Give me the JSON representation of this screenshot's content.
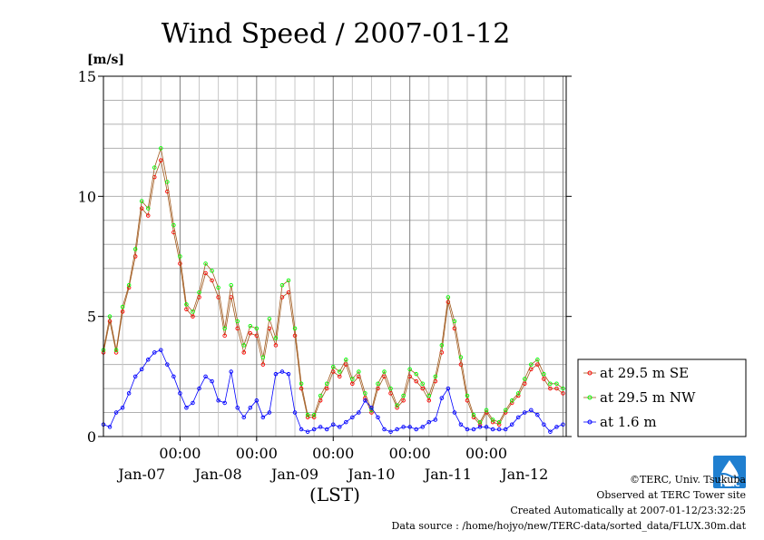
{
  "chart_data": {
    "type": "line",
    "title": "Wind Speed / 2007-01-12",
    "ylabel": "[m/s]",
    "xlabel": "(LST)",
    "ylim": [
      0,
      15
    ],
    "yticks": [
      "0",
      "5",
      "10",
      "15"
    ],
    "xlim_hours": [
      0,
      145
    ],
    "time_ticks": [
      {
        "label": "00:00",
        "hour": 24
      },
      {
        "label": "00:00",
        "hour": 48
      },
      {
        "label": "00:00",
        "hour": 72
      },
      {
        "label": "00:00",
        "hour": 96
      },
      {
        "label": "00:00",
        "hour": 120
      }
    ],
    "date_labels": [
      {
        "label": "Jan-07",
        "hour": 12
      },
      {
        "label": "Jan-08",
        "hour": 36
      },
      {
        "label": "Jan-09",
        "hour": 60
      },
      {
        "label": "Jan-10",
        "hour": 84
      },
      {
        "label": "Jan-11",
        "hour": 108
      },
      {
        "label": "Jan-12",
        "hour": 132
      }
    ],
    "grid": true,
    "legend_position": "right",
    "series": [
      {
        "name": "at 29.5 m SE",
        "color": "#ff0000",
        "line_color": "#a05a1e",
        "x": [
          0,
          2,
          4,
          6,
          8,
          10,
          12,
          14,
          16,
          18,
          20,
          22,
          24,
          26,
          28,
          30,
          32,
          34,
          36,
          38,
          40,
          42,
          44,
          46,
          48,
          50,
          52,
          54,
          56,
          58,
          60,
          62,
          64,
          66,
          68,
          70,
          72,
          74,
          76,
          78,
          80,
          82,
          84,
          86,
          88,
          90,
          92,
          94,
          96,
          98,
          100,
          102,
          104,
          106,
          108,
          110,
          112,
          114,
          116,
          118,
          120,
          122,
          124,
          126,
          128,
          130,
          132,
          134,
          136,
          138,
          140,
          142,
          144
        ],
        "values": [
          3.5,
          4.8,
          3.5,
          5.2,
          6.2,
          7.5,
          9.5,
          9.2,
          10.8,
          11.5,
          10.2,
          8.5,
          7.2,
          5.3,
          5.0,
          5.8,
          6.8,
          6.5,
          5.8,
          4.2,
          5.8,
          4.5,
          3.5,
          4.3,
          4.2,
          3.0,
          4.5,
          3.8,
          5.8,
          6.0,
          4.2,
          2.0,
          0.8,
          0.8,
          1.5,
          2.0,
          2.7,
          2.5,
          3.0,
          2.2,
          2.5,
          1.6,
          1.0,
          2.0,
          2.5,
          1.8,
          1.2,
          1.5,
          2.5,
          2.3,
          2.0,
          1.5,
          2.3,
          3.5,
          5.6,
          4.5,
          3.0,
          1.5,
          0.8,
          0.5,
          1.0,
          0.6,
          0.5,
          1.0,
          1.4,
          1.7,
          2.2,
          2.8,
          3.0,
          2.4,
          2.0,
          2.0,
          1.8
        ]
      },
      {
        "name": "at 29.5 m NW",
        "color": "#00ff00",
        "line_color": "#a05a1e",
        "x": [
          0,
          2,
          4,
          6,
          8,
          10,
          12,
          14,
          16,
          18,
          20,
          22,
          24,
          26,
          28,
          30,
          32,
          34,
          36,
          38,
          40,
          42,
          44,
          46,
          48,
          50,
          52,
          54,
          56,
          58,
          60,
          62,
          64,
          66,
          68,
          70,
          72,
          74,
          76,
          78,
          80,
          82,
          84,
          86,
          88,
          90,
          92,
          94,
          96,
          98,
          100,
          102,
          104,
          106,
          108,
          110,
          112,
          114,
          116,
          118,
          120,
          122,
          124,
          126,
          128,
          130,
          132,
          134,
          136,
          138,
          140,
          142,
          144
        ],
        "values": [
          3.6,
          5.0,
          3.6,
          5.4,
          6.3,
          7.8,
          9.8,
          9.5,
          11.2,
          12.0,
          10.6,
          8.8,
          7.5,
          5.5,
          5.2,
          6.0,
          7.2,
          6.9,
          6.2,
          4.5,
          6.3,
          4.8,
          3.8,
          4.6,
          4.5,
          3.3,
          4.9,
          4.1,
          6.3,
          6.5,
          4.5,
          2.2,
          0.9,
          0.9,
          1.7,
          2.2,
          2.9,
          2.7,
          3.2,
          2.4,
          2.7,
          1.8,
          1.1,
          2.2,
          2.7,
          2.0,
          1.3,
          1.7,
          2.8,
          2.6,
          2.2,
          1.7,
          2.5,
          3.8,
          5.8,
          4.8,
          3.3,
          1.7,
          0.9,
          0.6,
          1.1,
          0.7,
          0.6,
          1.1,
          1.5,
          1.8,
          2.4,
          3.0,
          3.2,
          2.6,
          2.2,
          2.2,
          2.0
        ]
      },
      {
        "name": "at 1.6 m",
        "color": "#0000ff",
        "line_color": "#0000ff",
        "x": [
          0,
          2,
          4,
          6,
          8,
          10,
          12,
          14,
          16,
          18,
          20,
          22,
          24,
          26,
          28,
          30,
          32,
          34,
          36,
          38,
          40,
          42,
          44,
          46,
          48,
          50,
          52,
          54,
          56,
          58,
          60,
          62,
          64,
          66,
          68,
          70,
          72,
          74,
          76,
          78,
          80,
          82,
          84,
          86,
          88,
          90,
          92,
          94,
          96,
          98,
          100,
          102,
          104,
          106,
          108,
          110,
          112,
          114,
          116,
          118,
          120,
          122,
          124,
          126,
          128,
          130,
          132,
          134,
          136,
          138,
          140,
          142,
          144
        ],
        "values": [
          0.5,
          0.4,
          1.0,
          1.2,
          1.8,
          2.5,
          2.8,
          3.2,
          3.5,
          3.6,
          3.0,
          2.5,
          1.8,
          1.2,
          1.4,
          2.0,
          2.5,
          2.3,
          1.5,
          1.4,
          2.7,
          1.2,
          0.8,
          1.2,
          1.5,
          0.8,
          1.0,
          2.6,
          2.7,
          2.6,
          1.0,
          0.3,
          0.2,
          0.3,
          0.4,
          0.3,
          0.5,
          0.4,
          0.6,
          0.8,
          1.0,
          1.5,
          1.2,
          0.8,
          0.3,
          0.2,
          0.3,
          0.4,
          0.4,
          0.3,
          0.4,
          0.6,
          0.7,
          1.6,
          2.0,
          1.0,
          0.5,
          0.3,
          0.3,
          0.4,
          0.4,
          0.3,
          0.3,
          0.3,
          0.5,
          0.8,
          1.0,
          1.1,
          0.9,
          0.5,
          0.2,
          0.4,
          0.5
        ]
      }
    ]
  },
  "footer": {
    "credit": "©TERC, Univ. Tsukuba",
    "site": "Observed at TERC Tower site",
    "created": "Created Automatically at 2007-01-12/23:32:25",
    "source": "Data source : /home/hojyo/new/TERC-data/sorted_data/FLUX.30m.dat"
  },
  "logo": {
    "text": "TERC",
    "color": "#1f7fd0",
    "icon": "terc-water-drop-logo"
  }
}
